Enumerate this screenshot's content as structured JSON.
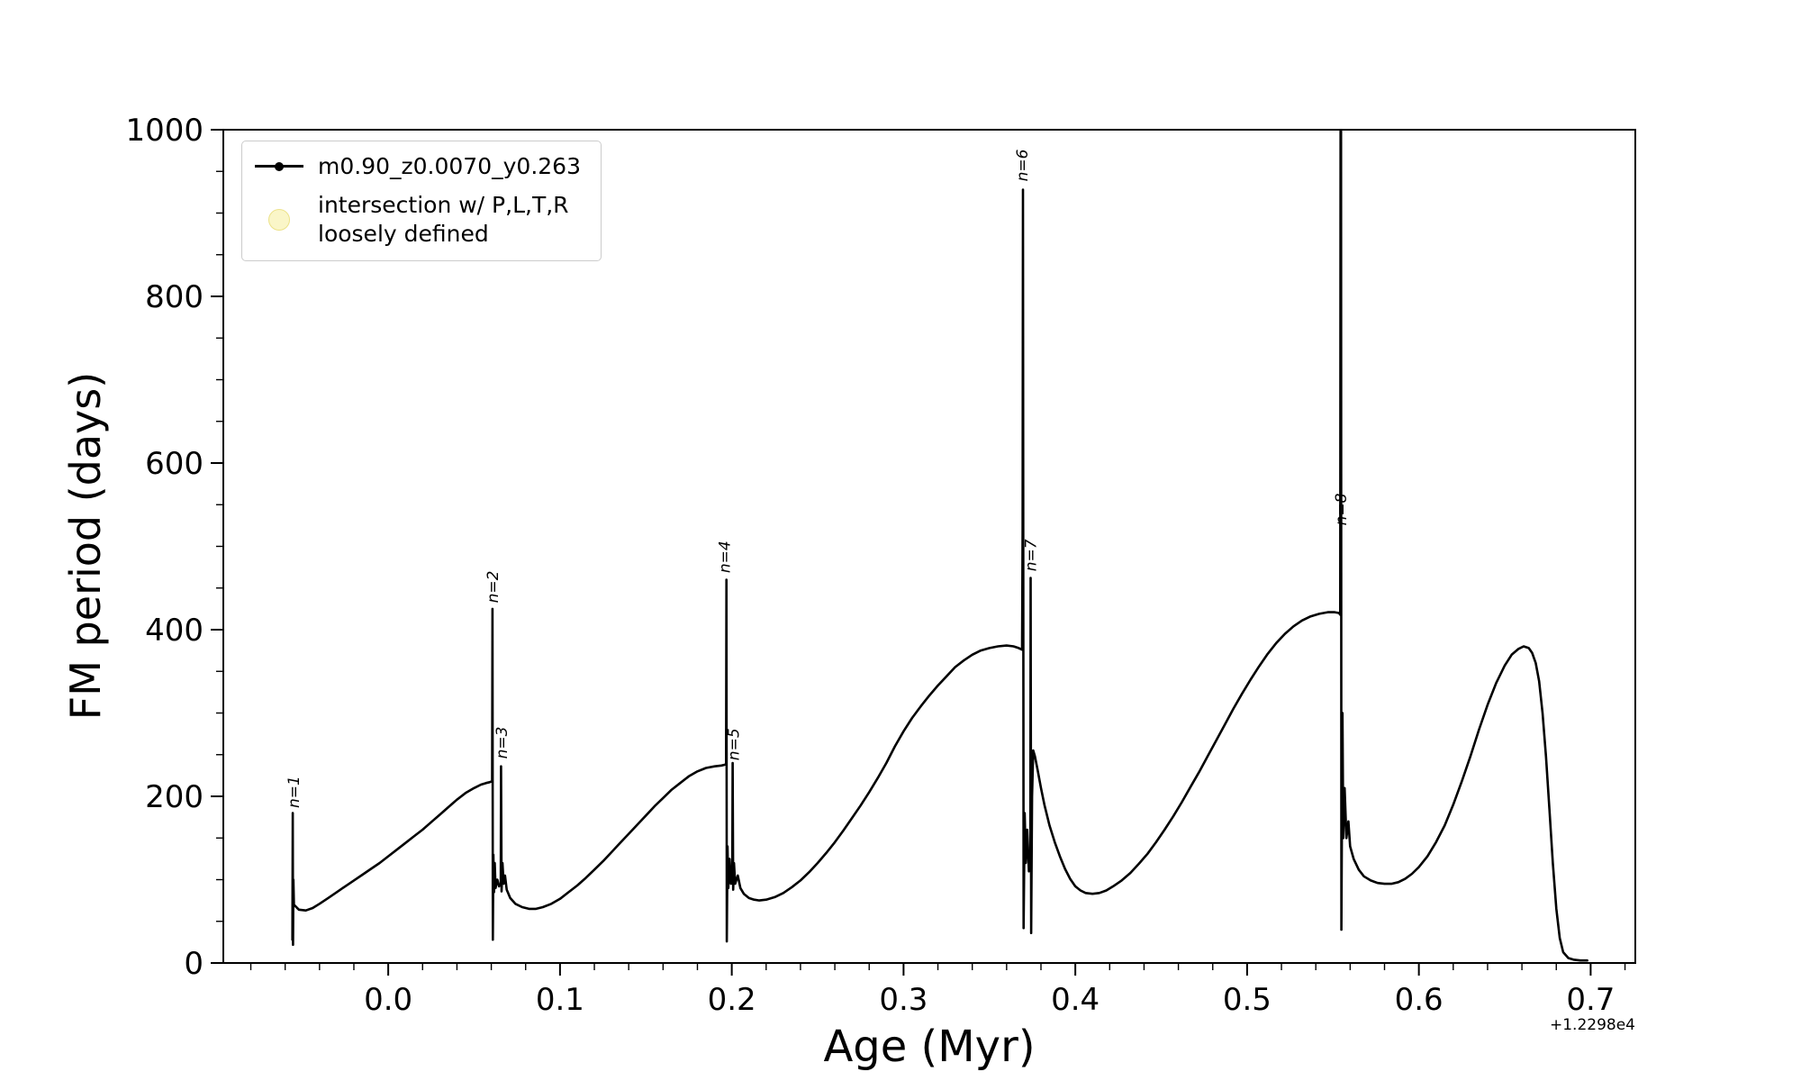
{
  "chart_data": {
    "type": "line",
    "title": "",
    "xlabel": "Age (Myr)",
    "ylabel": "FM period (days)",
    "x_offset_text": "+1.2298e4",
    "xlim": [
      -0.096,
      0.726
    ],
    "ylim": [
      0,
      1000
    ],
    "grid": false,
    "line_color": "#000000",
    "x_minor_step": 0.02,
    "y_minor_step": 50,
    "x_ticks": [
      {
        "v": 0.0,
        "label": "0.0"
      },
      {
        "v": 0.1,
        "label": "0.1"
      },
      {
        "v": 0.2,
        "label": "0.2"
      },
      {
        "v": 0.3,
        "label": "0.3"
      },
      {
        "v": 0.4,
        "label": "0.4"
      },
      {
        "v": 0.5,
        "label": "0.5"
      },
      {
        "v": 0.6,
        "label": "0.6"
      },
      {
        "v": 0.7,
        "label": "0.7"
      }
    ],
    "y_ticks": [
      {
        "v": 0,
        "label": "0"
      },
      {
        "v": 200,
        "label": "200"
      },
      {
        "v": 400,
        "label": "400"
      },
      {
        "v": 600,
        "label": "600"
      },
      {
        "v": 800,
        "label": "800"
      },
      {
        "v": 1000,
        "label": "1000"
      }
    ],
    "legend": {
      "position": "upper-left",
      "entries": [
        {
          "label": "m0.90_z0.0070_y0.263",
          "marker": "line-dot",
          "color": "#000000"
        },
        {
          "label": "intersection w/ P,L,T,R\nloosely defined",
          "marker": "circle",
          "color": "#faf6c8"
        }
      ]
    },
    "annotations": [
      {
        "label": "n=1",
        "x": -0.052,
        "y": 186
      },
      {
        "label": "n=2",
        "x": 0.064,
        "y": 432
      },
      {
        "label": "n=3",
        "x": 0.0692,
        "y": 245
      },
      {
        "label": "n=4",
        "x": 0.199,
        "y": 468
      },
      {
        "label": "n=5",
        "x": 0.204,
        "y": 243
      },
      {
        "label": "n=6",
        "x": 0.3722,
        "y": 938
      },
      {
        "label": "n=7",
        "x": 0.3772,
        "y": 470
      },
      {
        "label": "n=8",
        "x": 0.5578,
        "y": 525
      }
    ],
    "series": [
      {
        "name": "m0.90_z0.0070_y0.263",
        "color": "#000000",
        "points": [
          [
            -0.0558,
            28
          ],
          [
            -0.0556,
            180
          ],
          [
            -0.0554,
            22
          ],
          [
            -0.0552,
            100
          ],
          [
            -0.0549,
            70
          ],
          [
            -0.052,
            64
          ],
          [
            -0.048,
            63
          ],
          [
            -0.044,
            66
          ],
          [
            -0.04,
            71
          ],
          [
            -0.035,
            78
          ],
          [
            -0.03,
            85
          ],
          [
            -0.025,
            92
          ],
          [
            -0.02,
            99
          ],
          [
            -0.015,
            106
          ],
          [
            -0.01,
            113
          ],
          [
            -0.005,
            120
          ],
          [
            0.0,
            128
          ],
          [
            0.005,
            136
          ],
          [
            0.01,
            144
          ],
          [
            0.015,
            152
          ],
          [
            0.02,
            160
          ],
          [
            0.025,
            169
          ],
          [
            0.03,
            178
          ],
          [
            0.035,
            187
          ],
          [
            0.04,
            196
          ],
          [
            0.045,
            204
          ],
          [
            0.05,
            210
          ],
          [
            0.054,
            214
          ],
          [
            0.057,
            216
          ],
          [
            0.059,
            217
          ],
          [
            0.0605,
            218
          ],
          [
            0.0607,
            425
          ],
          [
            0.0609,
            28
          ],
          [
            0.0612,
            130
          ],
          [
            0.0616,
            85
          ],
          [
            0.062,
            120
          ],
          [
            0.0625,
            90
          ],
          [
            0.0635,
            100
          ],
          [
            0.0645,
            92
          ],
          [
            0.0655,
            95
          ],
          [
            0.0657,
            236
          ],
          [
            0.066,
            86
          ],
          [
            0.0665,
            120
          ],
          [
            0.0672,
            95
          ],
          [
            0.068,
            105
          ],
          [
            0.069,
            88
          ],
          [
            0.071,
            78
          ],
          [
            0.074,
            71
          ],
          [
            0.078,
            67
          ],
          [
            0.082,
            65
          ],
          [
            0.086,
            65
          ],
          [
            0.09,
            67
          ],
          [
            0.095,
            71
          ],
          [
            0.1,
            77
          ],
          [
            0.105,
            85
          ],
          [
            0.11,
            93
          ],
          [
            0.115,
            102
          ],
          [
            0.12,
            112
          ],
          [
            0.125,
            122
          ],
          [
            0.13,
            133
          ],
          [
            0.135,
            144
          ],
          [
            0.14,
            155
          ],
          [
            0.145,
            166
          ],
          [
            0.15,
            177
          ],
          [
            0.155,
            188
          ],
          [
            0.16,
            198
          ],
          [
            0.165,
            208
          ],
          [
            0.17,
            216
          ],
          [
            0.175,
            224
          ],
          [
            0.18,
            230
          ],
          [
            0.185,
            234
          ],
          [
            0.19,
            236
          ],
          [
            0.194,
            237
          ],
          [
            0.196,
            238
          ],
          [
            0.1967,
            239
          ],
          [
            0.1969,
            460
          ],
          [
            0.1971,
            26
          ],
          [
            0.1975,
            140
          ],
          [
            0.198,
            90
          ],
          [
            0.1987,
            125
          ],
          [
            0.1995,
            95
          ],
          [
            0.2003,
            110
          ],
          [
            0.2005,
            240
          ],
          [
            0.2008,
            88
          ],
          [
            0.2013,
            120
          ],
          [
            0.202,
            95
          ],
          [
            0.2035,
            105
          ],
          [
            0.205,
            90
          ],
          [
            0.207,
            83
          ],
          [
            0.21,
            78
          ],
          [
            0.213,
            76
          ],
          [
            0.216,
            75
          ],
          [
            0.22,
            76
          ],
          [
            0.225,
            79
          ],
          [
            0.23,
            84
          ],
          [
            0.235,
            91
          ],
          [
            0.24,
            99
          ],
          [
            0.245,
            109
          ],
          [
            0.25,
            120
          ],
          [
            0.255,
            132
          ],
          [
            0.26,
            145
          ],
          [
            0.265,
            159
          ],
          [
            0.27,
            174
          ],
          [
            0.275,
            189
          ],
          [
            0.28,
            205
          ],
          [
            0.285,
            222
          ],
          [
            0.29,
            240
          ],
          [
            0.295,
            260
          ],
          [
            0.3,
            278
          ],
          [
            0.305,
            294
          ],
          [
            0.31,
            308
          ],
          [
            0.315,
            321
          ],
          [
            0.32,
            333
          ],
          [
            0.325,
            344
          ],
          [
            0.33,
            355
          ],
          [
            0.335,
            363
          ],
          [
            0.34,
            370
          ],
          [
            0.345,
            375
          ],
          [
            0.35,
            378
          ],
          [
            0.355,
            380
          ],
          [
            0.36,
            381
          ],
          [
            0.364,
            380
          ],
          [
            0.367,
            378
          ],
          [
            0.369,
            376
          ],
          [
            0.3693,
            520
          ],
          [
            0.3695,
            928
          ],
          [
            0.3697,
            560
          ],
          [
            0.3699,
            42
          ],
          [
            0.3705,
            180
          ],
          [
            0.3712,
            120
          ],
          [
            0.372,
            160
          ],
          [
            0.373,
            110
          ],
          [
            0.3738,
            130
          ],
          [
            0.374,
            462
          ],
          [
            0.3743,
            36
          ],
          [
            0.3748,
            200
          ],
          [
            0.3755,
            255
          ],
          [
            0.3765,
            248
          ],
          [
            0.378,
            232
          ],
          [
            0.38,
            210
          ],
          [
            0.382,
            190
          ],
          [
            0.385,
            165
          ],
          [
            0.388,
            145
          ],
          [
            0.391,
            128
          ],
          [
            0.394,
            113
          ],
          [
            0.397,
            101
          ],
          [
            0.4,
            92
          ],
          [
            0.403,
            87
          ],
          [
            0.406,
            84
          ],
          [
            0.41,
            83
          ],
          [
            0.414,
            84
          ],
          [
            0.418,
            87
          ],
          [
            0.422,
            92
          ],
          [
            0.427,
            99
          ],
          [
            0.432,
            108
          ],
          [
            0.437,
            119
          ],
          [
            0.442,
            131
          ],
          [
            0.447,
            145
          ],
          [
            0.452,
            160
          ],
          [
            0.457,
            176
          ],
          [
            0.462,
            193
          ],
          [
            0.467,
            211
          ],
          [
            0.472,
            229
          ],
          [
            0.477,
            248
          ],
          [
            0.482,
            267
          ],
          [
            0.487,
            286
          ],
          [
            0.492,
            305
          ],
          [
            0.497,
            323
          ],
          [
            0.502,
            340
          ],
          [
            0.507,
            356
          ],
          [
            0.512,
            371
          ],
          [
            0.517,
            384
          ],
          [
            0.522,
            395
          ],
          [
            0.527,
            404
          ],
          [
            0.532,
            411
          ],
          [
            0.537,
            416
          ],
          [
            0.542,
            419
          ],
          [
            0.547,
            421
          ],
          [
            0.551,
            421
          ],
          [
            0.5535,
            420
          ],
          [
            0.5542,
            418
          ],
          [
            0.5544,
            1015
          ],
          [
            0.5547,
            1015
          ],
          [
            0.5549,
            40
          ],
          [
            0.5555,
            300
          ],
          [
            0.556,
            150
          ],
          [
            0.5568,
            210
          ],
          [
            0.5578,
            150
          ],
          [
            0.559,
            170
          ],
          [
            0.56,
            140
          ],
          [
            0.562,
            125
          ],
          [
            0.565,
            112
          ],
          [
            0.568,
            104
          ],
          [
            0.572,
            99
          ],
          [
            0.576,
            96
          ],
          [
            0.58,
            95
          ],
          [
            0.584,
            95
          ],
          [
            0.588,
            97
          ],
          [
            0.592,
            101
          ],
          [
            0.596,
            107
          ],
          [
            0.6,
            115
          ],
          [
            0.605,
            128
          ],
          [
            0.61,
            145
          ],
          [
            0.615,
            165
          ],
          [
            0.62,
            190
          ],
          [
            0.625,
            218
          ],
          [
            0.63,
            248
          ],
          [
            0.635,
            280
          ],
          [
            0.64,
            310
          ],
          [
            0.645,
            336
          ],
          [
            0.65,
            357
          ],
          [
            0.654,
            370
          ],
          [
            0.658,
            377
          ],
          [
            0.661,
            380
          ],
          [
            0.664,
            378
          ],
          [
            0.666,
            372
          ],
          [
            0.668,
            360
          ],
          [
            0.67,
            338
          ],
          [
            0.672,
            300
          ],
          [
            0.674,
            248
          ],
          [
            0.676,
            185
          ],
          [
            0.678,
            120
          ],
          [
            0.68,
            65
          ],
          [
            0.682,
            30
          ],
          [
            0.684,
            13
          ],
          [
            0.687,
            6
          ],
          [
            0.69,
            4
          ],
          [
            0.694,
            3
          ],
          [
            0.698,
            3
          ]
        ]
      }
    ]
  }
}
